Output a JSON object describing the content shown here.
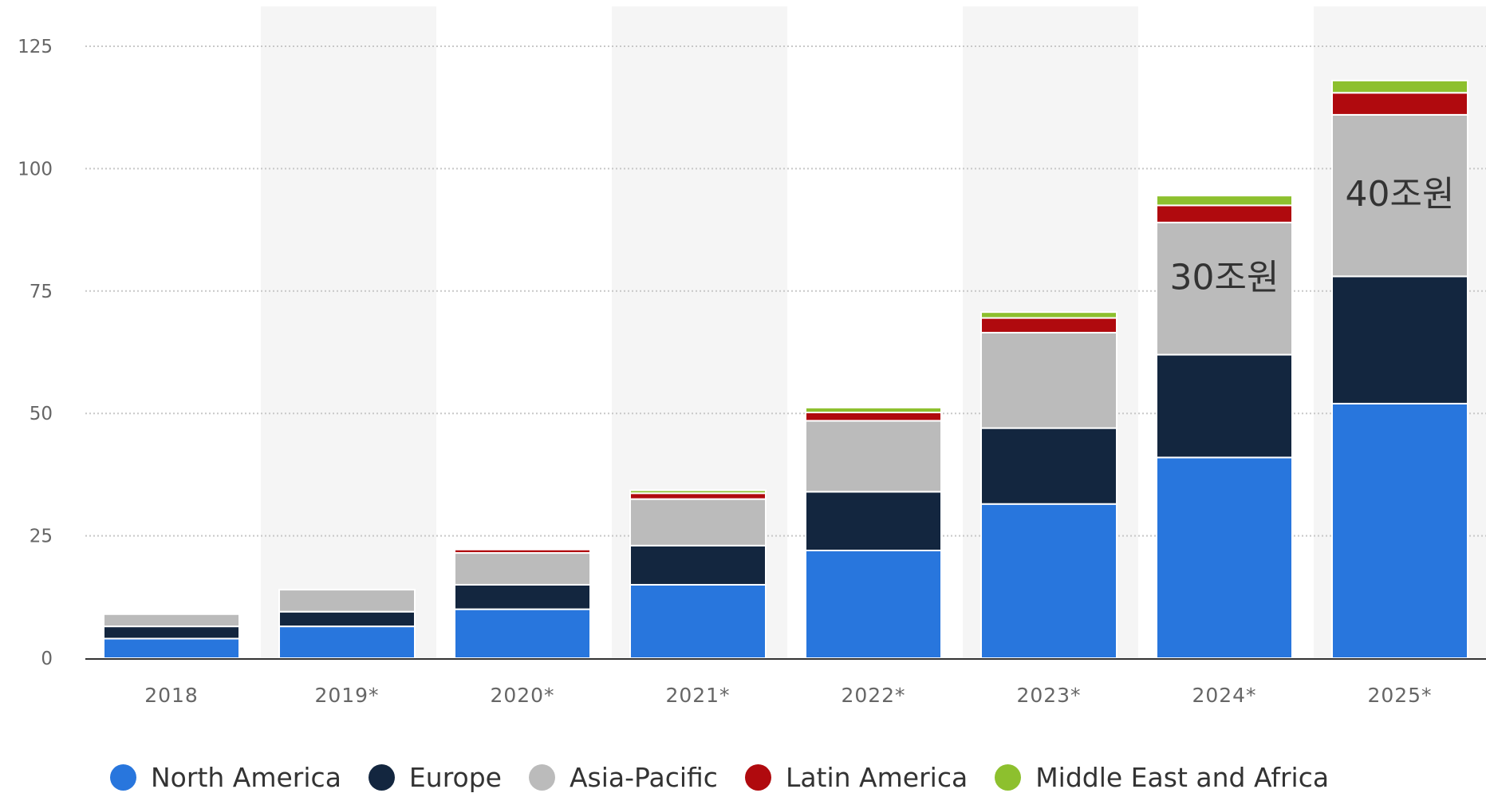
{
  "chart_data": {
    "type": "bar",
    "stacked": true,
    "categories": [
      "2018",
      "2019*",
      "2020*",
      "2021*",
      "2022*",
      "2023*",
      "2024*",
      "2025*"
    ],
    "series": [
      {
        "name": "North America",
        "color": "#2876dd",
        "values": [
          4,
          6.5,
          10,
          15,
          22,
          31.5,
          41,
          52
        ]
      },
      {
        "name": "Europe",
        "color": "#13263f",
        "values": [
          2.5,
          3,
          5,
          8,
          12,
          15.5,
          21,
          26
        ]
      },
      {
        "name": "Asia-Pacific",
        "color": "#bbbbbb",
        "values": [
          2.5,
          4.5,
          6.5,
          9.5,
          14.5,
          19.5,
          27,
          33
        ]
      },
      {
        "name": "Latin America",
        "color": "#b00a0e",
        "values": [
          0,
          0,
          0.7,
          1.2,
          1.7,
          3,
          3.5,
          4.5
        ]
      },
      {
        "name": "Middle East and Africa",
        "color": "#8dc02e",
        "values": [
          0,
          0,
          0,
          0.6,
          1,
          1.2,
          2,
          2.5
        ]
      }
    ],
    "ylim": [
      0,
      125
    ],
    "yticks": [
      0,
      25,
      50,
      75,
      100,
      125
    ],
    "grid": true,
    "legend_position": "bottom-left",
    "annotations": [
      {
        "category": "2024*",
        "text": "30조원",
        "y": 78
      },
      {
        "category": "2025*",
        "text": "40조원",
        "y": 95
      }
    ]
  }
}
